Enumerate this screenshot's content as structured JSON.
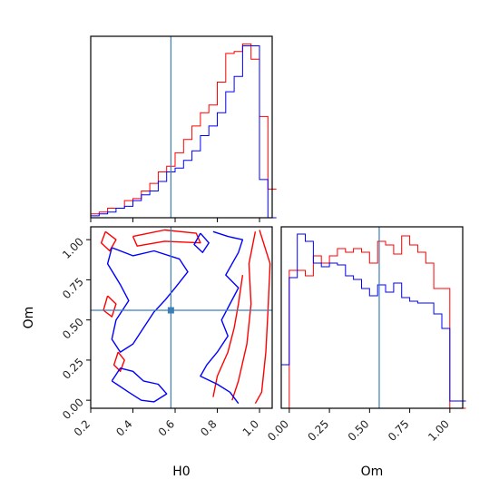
{
  "colors": {
    "red": "#ff0000",
    "blue": "#0000ff",
    "truth": "#3a7fb8",
    "frame": "#000000"
  },
  "chart_data": [
    {
      "panel": "H0 marginal",
      "type": "step-histogram",
      "xlim": [
        0.2,
        1.06
      ],
      "x_ticks": [
        0.2,
        0.4,
        0.6,
        0.8,
        1.0
      ],
      "truth_x": 0.58,
      "bin_width": 0.04,
      "bin_start": 0.2,
      "series": [
        {
          "color": "red",
          "counts": [
            2,
            3,
            5,
            5,
            9,
            10,
            14,
            18,
            24,
            27,
            34,
            41,
            48,
            55,
            59,
            71,
            86,
            87,
            91,
            83,
            53,
            15
          ]
        },
        {
          "color": "blue",
          "counts": [
            1,
            2,
            3,
            5,
            6,
            9,
            12,
            14,
            19,
            24,
            26,
            30,
            35,
            43,
            48,
            55,
            66,
            74,
            90,
            90,
            20,
            0
          ]
        }
      ]
    },
    {
      "panel": "H0 vs Om 2D contours",
      "type": "contour",
      "xlabel": "H0",
      "ylabel": "Om",
      "xlim": [
        0.2,
        1.06
      ],
      "ylim": [
        -0.05,
        1.08
      ],
      "x_ticks": [
        0.2,
        0.4,
        0.6,
        0.8,
        1.0
      ],
      "x_tick_labels": [
        "0.2",
        "0.4",
        "0.6",
        "0.8",
        "1.0"
      ],
      "y_ticks": [
        0.0,
        0.25,
        0.5,
        0.75,
        1.0
      ],
      "y_tick_labels": [
        "0.00",
        "0.25",
        "0.50",
        "0.75",
        "1.00"
      ],
      "truth": [
        0.58,
        0.56
      ],
      "series": [
        {
          "color": "red",
          "levels": [
            {
              "points": [
                [
                  1.0,
                  1.06
                ],
                [
                  1.05,
                  0.85
                ],
                [
                  1.04,
                  0.55
                ],
                [
                  1.03,
                  0.3
                ],
                [
                  1.01,
                  0.05
                ],
                [
                  0.98,
                  -0.02
                ]
              ]
            },
            {
              "points": [
                [
                  0.98,
                  1.05
                ],
                [
                  0.95,
                  0.85
                ],
                [
                  0.96,
                  0.6
                ],
                [
                  0.94,
                  0.35
                ],
                [
                  0.9,
                  0.12
                ],
                [
                  0.87,
                  0.0
                ]
              ]
            },
            {
              "points": [
                [
                  0.92,
                  0.78
                ],
                [
                  0.9,
                  0.6
                ],
                [
                  0.88,
                  0.45
                ],
                [
                  0.85,
                  0.3
                ],
                [
                  0.8,
                  0.15
                ],
                [
                  0.78,
                  0.02
                ]
              ]
            },
            {
              "points": [
                [
                  0.33,
                  0.3
                ],
                [
                  0.36,
                  0.25
                ],
                [
                  0.34,
                  0.18
                ],
                [
                  0.31,
                  0.22
                ],
                [
                  0.33,
                  0.3
                ]
              ]
            },
            {
              "points": [
                [
                  0.28,
                  0.65
                ],
                [
                  0.32,
                  0.6
                ],
                [
                  0.3,
                  0.52
                ],
                [
                  0.26,
                  0.56
                ],
                [
                  0.28,
                  0.65
                ]
              ]
            },
            {
              "points": [
                [
                  0.27,
                  1.05
                ],
                [
                  0.32,
                  1.0
                ],
                [
                  0.29,
                  0.93
                ],
                [
                  0.25,
                  0.98
                ],
                [
                  0.27,
                  1.05
                ]
              ]
            },
            {
              "points": [
                [
                  0.4,
                  1.02
                ],
                [
                  0.55,
                  1.06
                ],
                [
                  0.7,
                  1.04
                ],
                [
                  0.72,
                  0.98
                ],
                [
                  0.55,
                  0.99
                ],
                [
                  0.42,
                  0.96
                ],
                [
                  0.4,
                  1.02
                ]
              ]
            }
          ]
        },
        {
          "color": "blue",
          "levels": [
            {
              "points": [
                [
                  0.78,
                  1.05
                ],
                [
                  0.85,
                  1.02
                ],
                [
                  0.92,
                  1.0
                ],
                [
                  0.9,
                  0.92
                ],
                [
                  0.87,
                  0.85
                ],
                [
                  0.84,
                  0.78
                ],
                [
                  0.9,
                  0.7
                ],
                [
                  0.86,
                  0.6
                ],
                [
                  0.82,
                  0.5
                ],
                [
                  0.85,
                  0.4
                ],
                [
                  0.8,
                  0.3
                ],
                [
                  0.75,
                  0.22
                ],
                [
                  0.72,
                  0.15
                ],
                [
                  0.8,
                  0.1
                ],
                [
                  0.86,
                  0.05
                ],
                [
                  0.9,
                  -0.02
                ]
              ]
            },
            {
              "points": [
                [
                  0.3,
                  0.95
                ],
                [
                  0.4,
                  0.9
                ],
                [
                  0.5,
                  0.93
                ],
                [
                  0.62,
                  0.88
                ],
                [
                  0.66,
                  0.8
                ],
                [
                  0.6,
                  0.7
                ],
                [
                  0.55,
                  0.62
                ]
              ]
            },
            {
              "points": [
                [
                  0.55,
                  0.62
                ],
                [
                  0.5,
                  0.55
                ],
                [
                  0.45,
                  0.45
                ],
                [
                  0.4,
                  0.35
                ],
                [
                  0.34,
                  0.3
                ],
                [
                  0.3,
                  0.38
                ],
                [
                  0.32,
                  0.5
                ],
                [
                  0.38,
                  0.62
                ],
                [
                  0.34,
                  0.72
                ],
                [
                  0.28,
                  0.85
                ],
                [
                  0.3,
                  0.95
                ]
              ]
            },
            {
              "points": [
                [
                  0.3,
                  0.12
                ],
                [
                  0.38,
                  0.05
                ],
                [
                  0.44,
                  0.0
                ],
                [
                  0.5,
                  -0.01
                ],
                [
                  0.56,
                  0.04
                ],
                [
                  0.52,
                  0.1
                ],
                [
                  0.45,
                  0.12
                ],
                [
                  0.4,
                  0.18
                ],
                [
                  0.34,
                  0.2
                ],
                [
                  0.3,
                  0.12
                ]
              ]
            },
            {
              "points": [
                [
                  0.72,
                  1.04
                ],
                [
                  0.76,
                  0.98
                ],
                [
                  0.73,
                  0.92
                ],
                [
                  0.69,
                  0.97
                ],
                [
                  0.72,
                  1.04
                ]
              ]
            }
          ]
        }
      ]
    },
    {
      "panel": "Om marginal",
      "type": "step-histogram",
      "xlabel": "Om",
      "xlim": [
        -0.05,
        1.08
      ],
      "x_ticks": [
        0.0,
        0.25,
        0.5,
        0.75,
        1.0
      ],
      "x_tick_labels": [
        "0.00",
        "0.25",
        "0.50",
        "0.75",
        "1.00"
      ],
      "truth_x": 0.56,
      "bin_width": 0.05,
      "bin_start": -0.05,
      "series": [
        {
          "color": "red",
          "counts": [
            0,
            76,
            76,
            73,
            84,
            80,
            84,
            88,
            86,
            88,
            86,
            80,
            92,
            90,
            85,
            95,
            90,
            86,
            80,
            66,
            66,
            0,
            0
          ]
        },
        {
          "color": "blue",
          "counts": [
            24,
            72,
            96,
            92,
            80,
            78,
            80,
            79,
            73,
            71,
            66,
            62,
            68,
            64,
            69,
            61,
            59,
            58,
            58,
            52,
            44,
            4,
            4
          ]
        }
      ]
    }
  ]
}
